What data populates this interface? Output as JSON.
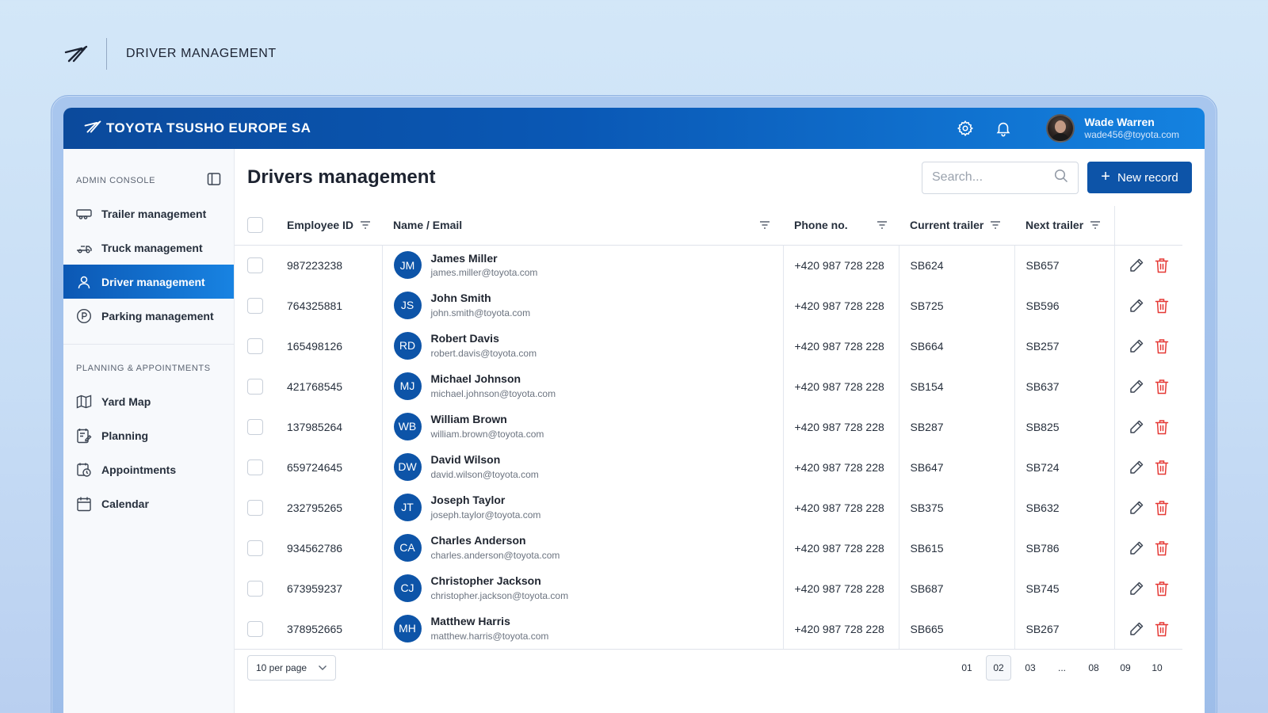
{
  "page": {
    "heading": "DRIVER MANAGEMENT"
  },
  "app": {
    "brand": "TOYOTA TSUSHO EUROPE SA",
    "user": {
      "name": "Wade Warren",
      "email": "wade456@toyota.com"
    }
  },
  "sidebar": {
    "section1_title": "ADMIN CONSOLE",
    "items": [
      {
        "label": "Trailer management",
        "icon": "trailer-icon"
      },
      {
        "label": "Truck management",
        "icon": "truck-icon"
      },
      {
        "label": "Driver management",
        "icon": "user-icon",
        "active": true
      },
      {
        "label": "Parking management",
        "icon": "parking-icon"
      }
    ],
    "section2_title": "PLANNING & APPOINTMENTS",
    "items2": [
      {
        "label": "Yard Map",
        "icon": "map-icon"
      },
      {
        "label": "Planning",
        "icon": "planning-icon"
      },
      {
        "label": "Appointments",
        "icon": "appointments-icon"
      },
      {
        "label": "Calendar",
        "icon": "calendar-icon"
      }
    ]
  },
  "main": {
    "title": "Drivers management",
    "search_placeholder": "Search...",
    "new_record_label": "New record"
  },
  "table": {
    "headers": {
      "employee_id": "Employee ID",
      "name": "Name / Email",
      "phone": "Phone no.",
      "current": "Current trailer",
      "next": "Next trailer"
    },
    "rows": [
      {
        "id": "987223238",
        "initials": "JM",
        "name": "James Miller",
        "email": "james.miller@toyota.com",
        "phone": "+420 987 728 228",
        "current": "SB624",
        "next": "SB657"
      },
      {
        "id": "764325881",
        "initials": "JS",
        "name": "John Smith",
        "email": "john.smith@toyota.com",
        "phone": "+420 987 728 228",
        "current": "SB725",
        "next": "SB596"
      },
      {
        "id": "165498126",
        "initials": "RD",
        "name": "Robert Davis",
        "email": "robert.davis@toyota.com",
        "phone": "+420 987 728 228",
        "current": "SB664",
        "next": "SB257"
      },
      {
        "id": "421768545",
        "initials": "MJ",
        "name": "Michael Johnson",
        "email": "michael.johnson@toyota.com",
        "phone": "+420 987 728 228",
        "current": "SB154",
        "next": "SB637"
      },
      {
        "id": "137985264",
        "initials": "WB",
        "name": "William Brown",
        "email": "william.brown@toyota.com",
        "phone": "+420 987 728 228",
        "current": "SB287",
        "next": "SB825"
      },
      {
        "id": "659724645",
        "initials": "DW",
        "name": "David Wilson",
        "email": "david.wilson@toyota.com",
        "phone": "+420 987 728 228",
        "current": "SB647",
        "next": "SB724"
      },
      {
        "id": "232795265",
        "initials": "JT",
        "name": "Joseph Taylor",
        "email": "joseph.taylor@toyota.com",
        "phone": "+420 987 728 228",
        "current": "SB375",
        "next": "SB632"
      },
      {
        "id": "934562786",
        "initials": "CA",
        "name": "Charles Anderson",
        "email": "charles.anderson@toyota.com",
        "phone": "+420 987 728 228",
        "current": "SB615",
        "next": "SB786"
      },
      {
        "id": "673959237",
        "initials": "CJ",
        "name": "Christopher Jackson",
        "email": "christopher.jackson@toyota.com",
        "phone": "+420 987 728 228",
        "current": "SB687",
        "next": "SB745"
      },
      {
        "id": "378952665",
        "initials": "MH",
        "name": "Matthew Harris",
        "email": "matthew.harris@toyota.com",
        "phone": "+420 987 728 228",
        "current": "SB665",
        "next": "SB267"
      }
    ]
  },
  "footer": {
    "per_page": "10 per page",
    "pages": [
      "01",
      "02",
      "03",
      "...",
      "08",
      "09",
      "10"
    ],
    "active_page": "02"
  },
  "colors": {
    "brand_blue": "#0d54a8",
    "delete_red": "#e53935"
  }
}
